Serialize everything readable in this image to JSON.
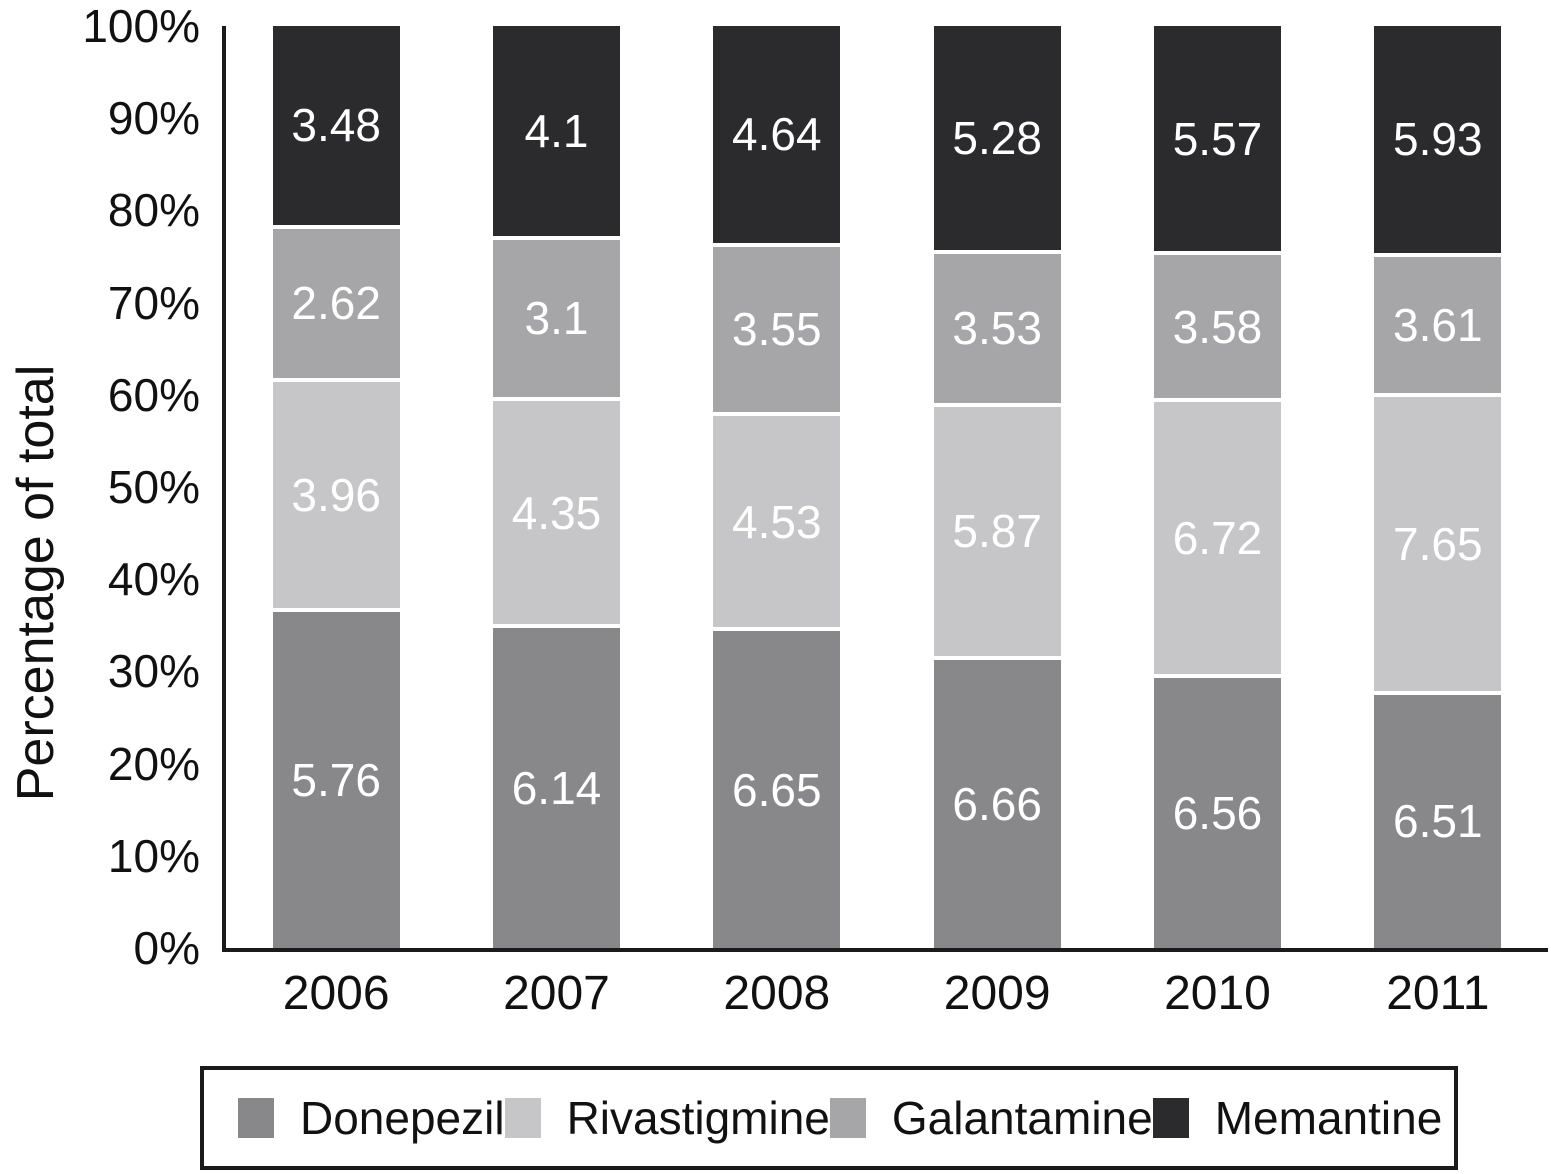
{
  "chart_data": {
    "type": "bar",
    "stacked": true,
    "percent_stacked": true,
    "title": "",
    "xlabel": "",
    "ylabel": "Percentage of total",
    "ylim": [
      0,
      100
    ],
    "grid": false,
    "legend_position": "bottom",
    "categories": [
      "2006",
      "2007",
      "2008",
      "2009",
      "2010",
      "2011"
    ],
    "yticks": [
      "0%",
      "10%",
      "20%",
      "30%",
      "40%",
      "50%",
      "60%",
      "70%",
      "80%",
      "90%",
      "100%"
    ],
    "series": [
      {
        "name": "Donepezil",
        "color": "#88888b",
        "values": [
          5.76,
          6.14,
          6.65,
          6.66,
          6.56,
          6.51
        ]
      },
      {
        "name": "Rivastigmine",
        "color": "#c6c6c8",
        "values": [
          3.96,
          4.35,
          4.53,
          5.87,
          6.72,
          7.65
        ]
      },
      {
        "name": "Galantamine",
        "color": "#a6a6a8",
        "values": [
          2.62,
          3.1,
          3.55,
          3.53,
          3.58,
          3.61
        ]
      },
      {
        "name": "Memantine",
        "color": "#2b2b2d",
        "values": [
          3.48,
          4.1,
          4.64,
          5.28,
          5.57,
          5.93
        ]
      }
    ],
    "value_label_color": "#ffffff",
    "axis_color": "#1a1a1a"
  }
}
